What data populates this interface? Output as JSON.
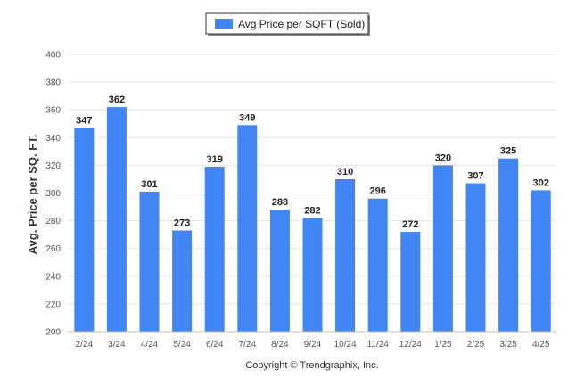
{
  "chart_data": {
    "type": "bar",
    "title": "",
    "xlabel": "",
    "ylabel": "Avg. Price per SQ. FT.",
    "ylim": [
      200,
      400
    ],
    "yticks": [
      200,
      220,
      240,
      260,
      280,
      300,
      320,
      340,
      360,
      380,
      400
    ],
    "grid": true,
    "legend_position": "top-center",
    "categories": [
      "2/24",
      "3/24",
      "4/24",
      "5/24",
      "6/24",
      "7/24",
      "8/24",
      "9/24",
      "10/24",
      "11/24",
      "12/24",
      "1/25",
      "2/25",
      "3/25",
      "4/25"
    ],
    "series": [
      {
        "name": "Avg Price per SQFT (Sold)",
        "values": [
          347,
          362,
          301,
          273,
          319,
          349,
          288,
          282,
          310,
          296,
          272,
          320,
          307,
          325,
          302
        ],
        "color": "#4285f4"
      }
    ]
  },
  "legend": {
    "label": "Avg Price per SQFT (Sold)"
  },
  "footer": {
    "copyright": "Copyright © Trendgraphix, Inc."
  },
  "colors": {
    "bar": "#4285f4",
    "grid": "#e6e6e6",
    "axis": "#c0c0c0"
  }
}
